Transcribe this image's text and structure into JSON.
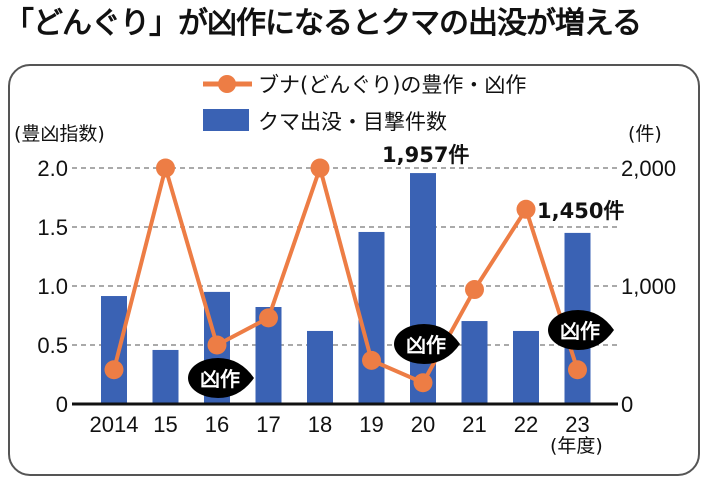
{
  "title": "「どんぐり」が凶作になるとクマの出没が増える",
  "chart_data": {
    "type": "bar+line",
    "title": "「どんぐり」が凶作になるとクマの出没が増える",
    "categories": [
      "2014",
      "15",
      "16",
      "17",
      "18",
      "19",
      "20",
      "21",
      "22",
      "23"
    ],
    "xlabel": "(年度)",
    "ylabel_left": "(豊凶指数)",
    "ylabel_right": "(件)",
    "left_axis": {
      "range": [
        0,
        2.0
      ],
      "ticks": [
        "0",
        "0.5",
        "1.0",
        "1.5",
        "2.0"
      ],
      "tick_values": [
        0,
        0.5,
        1.0,
        1.5,
        2.0
      ]
    },
    "right_axis": {
      "range": [
        0,
        2000
      ],
      "ticks": [
        "0",
        "1,000",
        "2,000"
      ],
      "tick_values": [
        0,
        1000,
        2000
      ]
    },
    "grid": true,
    "legend_position": "top-center",
    "series": [
      {
        "name": "ブナ(どんぐり)の豊作・凶作",
        "type": "line",
        "axis": "left",
        "color": "#ED7D45",
        "values": [
          0.29,
          2.0,
          0.5,
          0.73,
          2.0,
          0.37,
          0.18,
          0.97,
          1.65,
          0.29
        ]
      },
      {
        "name": "クマ出没・目撃件数",
        "type": "bar",
        "axis": "right",
        "color": "#3A62B4",
        "values": [
          915,
          458,
          950,
          822,
          619,
          1458,
          1957,
          703,
          619,
          1450
        ]
      }
    ],
    "annotations": [
      {
        "text": "1,957件",
        "category": "20",
        "series": "クマ出没・目撃件数"
      },
      {
        "text": "1,450件",
        "category": "23",
        "series": "クマ出没・目撃件数"
      }
    ],
    "badges": [
      {
        "text": "凶作",
        "category": "16"
      },
      {
        "text": "凶作",
        "category": "20"
      },
      {
        "text": "凶作",
        "category": "23"
      }
    ]
  }
}
